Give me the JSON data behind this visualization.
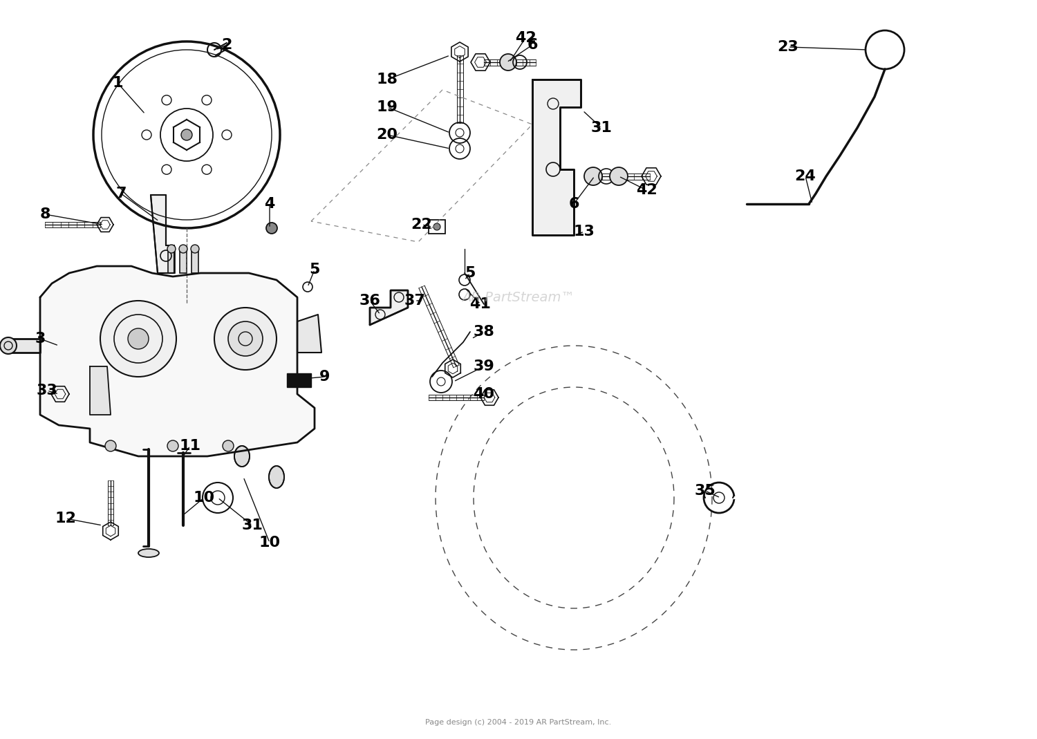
{
  "bg_color": "#ffffff",
  "lc": "#111111",
  "label_color": "#000000",
  "watermark": "AR PartStream™",
  "copyright": "Page design (c) 2004 - 2019 AR PartStream, Inc.",
  "figsize": [
    15.0,
    10.69
  ],
  "dpi": 100,
  "labels": [
    [
      "1",
      185,
      115
    ],
    [
      "2",
      330,
      65
    ],
    [
      "3",
      58,
      490
    ],
    [
      "4",
      390,
      295
    ],
    [
      "5",
      455,
      390
    ],
    [
      "5",
      680,
      395
    ],
    [
      "6",
      770,
      65
    ],
    [
      "6",
      830,
      295
    ],
    [
      "7",
      175,
      280
    ],
    [
      "8",
      65,
      310
    ],
    [
      "9",
      470,
      545
    ],
    [
      "10",
      295,
      720
    ],
    [
      "10",
      390,
      785
    ],
    [
      "11",
      275,
      645
    ],
    [
      "12",
      95,
      750
    ],
    [
      "13",
      845,
      335
    ],
    [
      "18",
      560,
      115
    ],
    [
      "19",
      560,
      155
    ],
    [
      "20",
      560,
      195
    ],
    [
      "22",
      610,
      325
    ],
    [
      "23",
      1140,
      68
    ],
    [
      "24",
      1165,
      255
    ],
    [
      "31",
      870,
      185
    ],
    [
      "31",
      365,
      760
    ],
    [
      "33",
      68,
      565
    ],
    [
      "35",
      1020,
      710
    ],
    [
      "36",
      535,
      435
    ],
    [
      "37",
      600,
      435
    ],
    [
      "38",
      700,
      480
    ],
    [
      "39",
      700,
      530
    ],
    [
      "40",
      700,
      570
    ],
    [
      "41",
      695,
      440
    ],
    [
      "42",
      760,
      55
    ],
    [
      "42",
      935,
      275
    ]
  ]
}
